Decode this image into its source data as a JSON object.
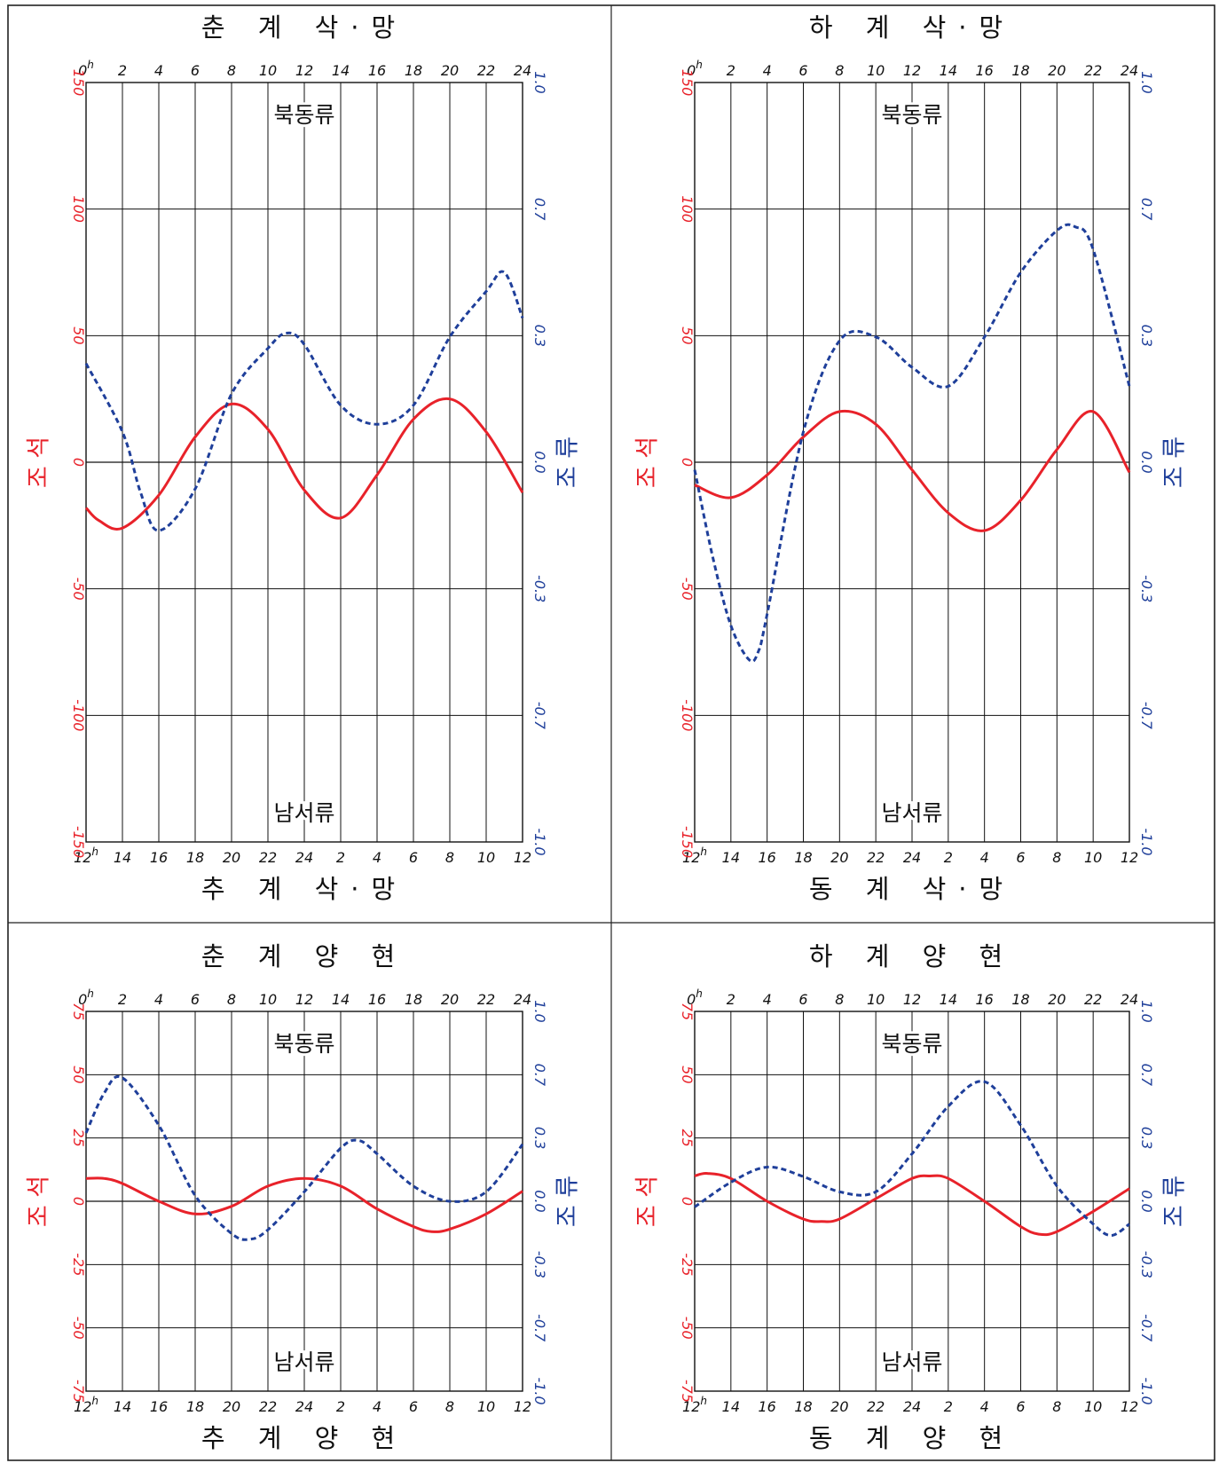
{
  "colors": {
    "tide": "#e8222a",
    "current": "#1f3f9a",
    "grid": "#111111",
    "border": "#222222"
  },
  "chart_data": [
    {
      "type": "line",
      "title_top": "춘 계 삭·망",
      "title_bottom": "추 계 삭·망",
      "top_ticks": [
        "0h",
        "2",
        "4",
        "6",
        "8",
        "10",
        "12",
        "14",
        "16",
        "18",
        "20",
        "22",
        "24"
      ],
      "bottom_ticks": [
        "12h",
        "14",
        "16",
        "18",
        "20",
        "22",
        "24",
        "2",
        "4",
        "6",
        "8",
        "10",
        "12"
      ],
      "x_range": [
        0,
        24
      ],
      "ylabel_left": "조 석",
      "ylabel_right": "조 류",
      "left_ticks": [
        "150",
        "100",
        "50",
        "0",
        "-50",
        "-100",
        "-150"
      ],
      "right_ticks": [
        "1.0",
        "0.7",
        "0.3",
        "0.0",
        "-0.3",
        "-0.7",
        "-1.0"
      ],
      "ylim": [
        -150,
        150
      ],
      "annotation_top": "북동류",
      "annotation_bottom": "남서류",
      "series": [
        {
          "style": "solid",
          "axis": "left",
          "x": [
            0,
            0.7,
            2,
            4,
            6,
            8,
            10,
            12,
            14,
            16,
            18,
            20,
            22,
            24
          ],
          "y": [
            -18,
            -23,
            -26,
            -13,
            10,
            23,
            13,
            -11,
            -22,
            -5,
            17,
            25,
            12,
            -12
          ]
        },
        {
          "style": "dashed",
          "axis": "right",
          "x": [
            0,
            2,
            3,
            4,
            6,
            8,
            10,
            11,
            12,
            14,
            16,
            18,
            20,
            22,
            23,
            24
          ],
          "y": [
            0.26,
            0.08,
            -0.08,
            -0.18,
            -0.07,
            0.18,
            0.3,
            0.34,
            0.31,
            0.15,
            0.1,
            0.15,
            0.33,
            0.45,
            0.5,
            0.38
          ]
        }
      ]
    },
    {
      "type": "line",
      "title_top": "하 계 삭·망",
      "title_bottom": "동 계 삭·망",
      "top_ticks": [
        "0h",
        "2",
        "4",
        "6",
        "8",
        "10",
        "12",
        "14",
        "16",
        "18",
        "20",
        "22",
        "24"
      ],
      "bottom_ticks": [
        "12h",
        "14",
        "16",
        "18",
        "20",
        "22",
        "24",
        "2",
        "4",
        "6",
        "8",
        "10",
        "12"
      ],
      "x_range": [
        0,
        24
      ],
      "ylabel_left": "조 석",
      "ylabel_right": "조 류",
      "left_ticks": [
        "150",
        "100",
        "50",
        "0",
        "-50",
        "-100",
        "-150"
      ],
      "right_ticks": [
        "1.0",
        "0.7",
        "0.3",
        "0.0",
        "-0.3",
        "-0.7",
        "-1.0"
      ],
      "ylim": [
        -150,
        150
      ],
      "annotation_top": "북동류",
      "annotation_bottom": "남서류",
      "series": [
        {
          "style": "solid",
          "axis": "left",
          "x": [
            0,
            2,
            4,
            6,
            8,
            10,
            12,
            14,
            16,
            18,
            20,
            22,
            24
          ],
          "y": [
            -9,
            -14,
            -5,
            10,
            20,
            15,
            -3,
            -20,
            -27,
            -15,
            5,
            20,
            -4
          ]
        },
        {
          "style": "dashed",
          "axis": "right",
          "x": [
            0,
            1,
            2,
            3,
            3.5,
            4,
            6,
            8,
            10,
            12,
            14,
            16,
            18,
            20,
            21,
            22,
            24
          ],
          "y": [
            -0.02,
            -0.25,
            -0.43,
            -0.52,
            -0.5,
            -0.4,
            0.08,
            0.32,
            0.33,
            0.25,
            0.2,
            0.33,
            0.5,
            0.61,
            0.62,
            0.56,
            0.2
          ]
        }
      ]
    },
    {
      "type": "line",
      "title_top": "춘 계 양 현",
      "title_bottom": "추 계 양 현",
      "top_ticks": [
        "0h",
        "2",
        "4",
        "6",
        "8",
        "10",
        "12",
        "14",
        "16",
        "18",
        "20",
        "22",
        "24"
      ],
      "bottom_ticks": [
        "12h",
        "14",
        "16",
        "18",
        "20",
        "22",
        "24",
        "2",
        "4",
        "6",
        "8",
        "10",
        "12"
      ],
      "x_range": [
        0,
        24
      ],
      "ylabel_left": "조 석",
      "ylabel_right": "조 류",
      "left_ticks": [
        "75",
        "50",
        "25",
        "0",
        "-25",
        "-50",
        "-75"
      ],
      "right_ticks": [
        "1.0",
        "0.7",
        "0.3",
        "0.0",
        "-0.3",
        "-0.7",
        "-1.0"
      ],
      "ylim": [
        -75,
        75
      ],
      "annotation_top": "북동류",
      "annotation_bottom": "남서류",
      "series": [
        {
          "style": "solid",
          "axis": "left",
          "x": [
            0,
            1,
            2,
            4,
            6,
            8,
            10,
            12,
            14,
            16,
            18,
            19,
            20,
            22,
            24
          ],
          "y": [
            9,
            9,
            7,
            0,
            -5,
            -2,
            6,
            9,
            6,
            -3,
            -10,
            -12,
            -11,
            -5,
            4
          ]
        },
        {
          "style": "dashed",
          "axis": "right",
          "x": [
            0,
            1,
            2,
            4,
            6,
            8,
            9,
            10,
            12,
            14,
            15,
            16,
            18,
            20,
            22,
            24
          ],
          "y": [
            0.36,
            0.57,
            0.65,
            0.4,
            0.03,
            -0.17,
            -0.2,
            -0.15,
            0.05,
            0.28,
            0.32,
            0.25,
            0.08,
            0.0,
            0.05,
            0.3
          ]
        }
      ]
    },
    {
      "type": "line",
      "title_top": "하 계 양 현",
      "title_bottom": "동 계 양 현",
      "top_ticks": [
        "0h",
        "2",
        "4",
        "6",
        "8",
        "10",
        "12",
        "14",
        "16",
        "18",
        "20",
        "22",
        "24"
      ],
      "bottom_ticks": [
        "12h",
        "14",
        "16",
        "18",
        "20",
        "22",
        "24",
        "2",
        "4",
        "6",
        "8",
        "10",
        "12"
      ],
      "x_range": [
        0,
        24
      ],
      "ylabel_left": "조 석",
      "ylabel_right": "조 류",
      "left_ticks": [
        "75",
        "50",
        "25",
        "0",
        "-25",
        "-50",
        "-75"
      ],
      "right_ticks": [
        "1.0",
        "0.7",
        "0.3",
        "0.0",
        "-0.3",
        "-0.7",
        "-1.0"
      ],
      "ylim": [
        -75,
        75
      ],
      "annotation_top": "북동류",
      "annotation_bottom": "남서류",
      "series": [
        {
          "style": "solid",
          "axis": "left",
          "x": [
            0,
            0.7,
            2,
            4,
            6,
            7,
            8,
            10,
            12,
            13,
            14,
            16,
            18,
            19,
            20,
            22,
            24
          ],
          "y": [
            10,
            11,
            9,
            0,
            -7,
            -8,
            -7,
            1,
            9,
            10,
            9,
            0,
            -10,
            -13,
            -12,
            -4,
            5
          ]
        },
        {
          "style": "dashed",
          "axis": "right",
          "x": [
            0,
            2,
            4,
            6,
            8,
            10,
            12,
            14,
            16,
            18,
            20,
            22,
            23,
            24
          ],
          "y": [
            -0.03,
            0.1,
            0.18,
            0.13,
            0.05,
            0.05,
            0.25,
            0.5,
            0.63,
            0.4,
            0.08,
            -0.12,
            -0.18,
            -0.12
          ]
        }
      ]
    }
  ]
}
